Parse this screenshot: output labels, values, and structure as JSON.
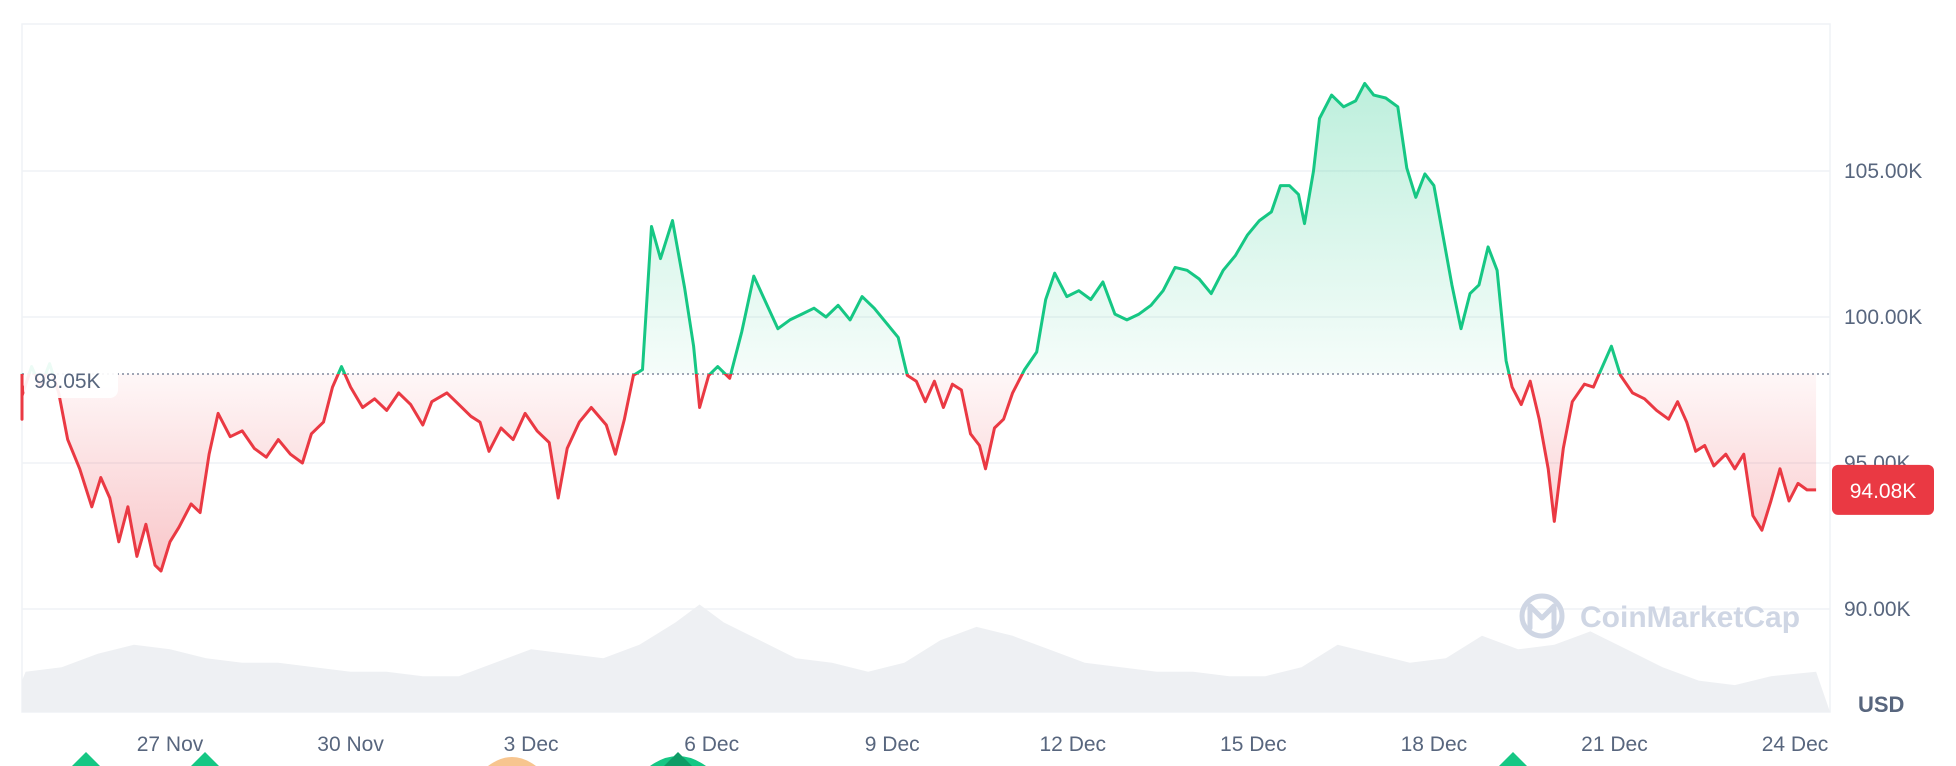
{
  "chart_data": {
    "type": "area",
    "currency_label": "USD",
    "watermark": "CoinMarketCap",
    "reference_label": "98.05K",
    "reference_value": 98050,
    "current_label": "94.08K",
    "current_value": 94080,
    "ylim": [
      86500,
      109500
    ],
    "y_ticks": [
      {
        "value": 90000,
        "label": "90.00K"
      },
      {
        "value": 95000,
        "label": "95.00K"
      },
      {
        "value": 100000,
        "label": "100.00K"
      },
      {
        "value": 105000,
        "label": "105.00K"
      }
    ],
    "x_range": [
      0,
      30
    ],
    "x_ticks": [
      {
        "x": 3,
        "label": "27 Nov"
      },
      {
        "x": 6,
        "label": "30 Nov"
      },
      {
        "x": 9,
        "label": "3 Dec"
      },
      {
        "x": 12,
        "label": "6 Dec"
      },
      {
        "x": 15,
        "label": "9 Dec"
      },
      {
        "x": 18,
        "label": "12 Dec"
      },
      {
        "x": 21,
        "label": "15 Dec"
      },
      {
        "x": 24,
        "label": "18 Dec"
      },
      {
        "x": 27,
        "label": "21 Dec"
      },
      {
        "x": 30,
        "label": "24 Dec"
      }
    ],
    "colors": {
      "up": "#16c784",
      "down": "#ea3943",
      "grid": "#eff2f5",
      "reference": "#808a9d",
      "volume": "#eef0f3"
    },
    "series": [
      {
        "values": [
          [
            0.0,
            98050
          ],
          [
            0.2,
            97200
          ],
          [
            0.35,
            96500
          ],
          [
            0.5,
            97300
          ],
          [
            0.7,
            98300
          ],
          [
            0.85,
            97600
          ],
          [
            1.0,
            98400
          ],
          [
            1.15,
            97400
          ],
          [
            1.3,
            95800
          ],
          [
            1.5,
            94800
          ],
          [
            1.7,
            93500
          ],
          [
            1.85,
            94500
          ],
          [
            2.0,
            93800
          ],
          [
            2.15,
            92300
          ],
          [
            2.3,
            93500
          ],
          [
            2.45,
            91800
          ],
          [
            2.6,
            92900
          ],
          [
            2.75,
            91500
          ],
          [
            2.85,
            91300
          ],
          [
            3.0,
            92300
          ],
          [
            3.15,
            92800
          ],
          [
            3.35,
            93600
          ],
          [
            3.5,
            93300
          ],
          [
            3.65,
            95300
          ],
          [
            3.8,
            96700
          ],
          [
            4.0,
            95900
          ],
          [
            4.2,
            96100
          ],
          [
            4.4,
            95500
          ],
          [
            4.6,
            95200
          ],
          [
            4.8,
            95800
          ],
          [
            5.0,
            95300
          ],
          [
            5.2,
            95000
          ],
          [
            5.35,
            96000
          ],
          [
            5.55,
            96400
          ],
          [
            5.7,
            97600
          ],
          [
            5.85,
            98300
          ],
          [
            6.0,
            97600
          ],
          [
            6.2,
            96900
          ],
          [
            6.4,
            97200
          ],
          [
            6.6,
            96800
          ],
          [
            6.8,
            97400
          ],
          [
            7.0,
            97000
          ],
          [
            7.2,
            96300
          ],
          [
            7.35,
            97100
          ],
          [
            7.6,
            97400
          ],
          [
            7.8,
            97000
          ],
          [
            8.0,
            96600
          ],
          [
            8.15,
            96400
          ],
          [
            8.3,
            95400
          ],
          [
            8.5,
            96200
          ],
          [
            8.7,
            95800
          ],
          [
            8.9,
            96700
          ],
          [
            9.1,
            96100
          ],
          [
            9.3,
            95700
          ],
          [
            9.45,
            93800
          ],
          [
            9.6,
            95500
          ],
          [
            9.8,
            96400
          ],
          [
            10.0,
            96900
          ],
          [
            10.25,
            96300
          ],
          [
            10.4,
            95300
          ],
          [
            10.55,
            96500
          ],
          [
            10.7,
            98000
          ],
          [
            10.85,
            98200
          ],
          [
            11.0,
            103100
          ],
          [
            11.15,
            102000
          ],
          [
            11.35,
            103300
          ],
          [
            11.55,
            101000
          ],
          [
            11.7,
            99000
          ],
          [
            11.8,
            96900
          ],
          [
            11.95,
            98000
          ],
          [
            12.1,
            98300
          ],
          [
            12.3,
            97900
          ],
          [
            12.5,
            99500
          ],
          [
            12.7,
            101400
          ],
          [
            12.9,
            100500
          ],
          [
            13.1,
            99600
          ],
          [
            13.3,
            99900
          ],
          [
            13.5,
            100100
          ],
          [
            13.7,
            100300
          ],
          [
            13.9,
            100000
          ],
          [
            14.1,
            100400
          ],
          [
            14.3,
            99900
          ],
          [
            14.5,
            100700
          ],
          [
            14.7,
            100300
          ],
          [
            14.9,
            99800
          ],
          [
            15.1,
            99300
          ],
          [
            15.25,
            98000
          ],
          [
            15.4,
            97800
          ],
          [
            15.55,
            97100
          ],
          [
            15.7,
            97800
          ],
          [
            15.85,
            96900
          ],
          [
            16.0,
            97700
          ],
          [
            16.15,
            97500
          ],
          [
            16.3,
            96000
          ],
          [
            16.45,
            95600
          ],
          [
            16.55,
            94800
          ],
          [
            16.7,
            96200
          ],
          [
            16.85,
            96500
          ],
          [
            17.0,
            97400
          ],
          [
            17.2,
            98200
          ],
          [
            17.4,
            98800
          ],
          [
            17.55,
            100600
          ],
          [
            17.7,
            101500
          ],
          [
            17.9,
            100700
          ],
          [
            18.1,
            100900
          ],
          [
            18.3,
            100600
          ],
          [
            18.5,
            101200
          ],
          [
            18.7,
            100100
          ],
          [
            18.9,
            99900
          ],
          [
            19.1,
            100100
          ],
          [
            19.3,
            100400
          ],
          [
            19.5,
            100900
          ],
          [
            19.7,
            101700
          ],
          [
            19.9,
            101600
          ],
          [
            20.1,
            101300
          ],
          [
            20.3,
            100800
          ],
          [
            20.5,
            101600
          ],
          [
            20.7,
            102100
          ],
          [
            20.9,
            102800
          ],
          [
            21.1,
            103300
          ],
          [
            21.3,
            103600
          ],
          [
            21.45,
            104500
          ],
          [
            21.6,
            104500
          ],
          [
            21.75,
            104200
          ],
          [
            21.85,
            103200
          ],
          [
            22.0,
            105000
          ],
          [
            22.1,
            106800
          ],
          [
            22.3,
            107600
          ],
          [
            22.5,
            107200
          ],
          [
            22.7,
            107400
          ],
          [
            22.85,
            108000
          ],
          [
            23.0,
            107600
          ],
          [
            23.2,
            107500
          ],
          [
            23.4,
            107200
          ],
          [
            23.55,
            105100
          ],
          [
            23.7,
            104100
          ],
          [
            23.85,
            104900
          ],
          [
            24.0,
            104500
          ],
          [
            24.15,
            102800
          ],
          [
            24.3,
            101100
          ],
          [
            24.45,
            99600
          ],
          [
            24.6,
            100800
          ],
          [
            24.75,
            101100
          ],
          [
            24.9,
            102400
          ],
          [
            25.05,
            101600
          ],
          [
            25.2,
            98500
          ],
          [
            25.3,
            97600
          ],
          [
            25.45,
            97000
          ],
          [
            25.6,
            97800
          ],
          [
            25.75,
            96500
          ],
          [
            25.9,
            94800
          ],
          [
            26.0,
            93000
          ],
          [
            26.15,
            95500
          ],
          [
            26.3,
            97100
          ],
          [
            26.5,
            97700
          ],
          [
            26.65,
            97600
          ],
          [
            26.8,
            98300
          ],
          [
            26.95,
            99000
          ],
          [
            27.1,
            98000
          ],
          [
            27.3,
            97400
          ],
          [
            27.5,
            97200
          ],
          [
            27.7,
            96800
          ],
          [
            27.9,
            96500
          ],
          [
            28.05,
            97100
          ],
          [
            28.2,
            96400
          ],
          [
            28.35,
            95400
          ],
          [
            28.5,
            95600
          ],
          [
            28.65,
            94900
          ],
          [
            28.85,
            95300
          ],
          [
            29.0,
            94800
          ],
          [
            29.15,
            95300
          ],
          [
            29.3,
            93200
          ],
          [
            29.45,
            92700
          ],
          [
            29.6,
            93700
          ],
          [
            29.75,
            94800
          ],
          [
            29.9,
            93700
          ],
          [
            30.05,
            94300
          ],
          [
            30.2,
            94080
          ],
          [
            30.35,
            94080
          ]
        ]
      }
    ],
    "volume": [
      [
        0.0,
        0.35
      ],
      [
        0.6,
        0.45
      ],
      [
        1.2,
        0.5
      ],
      [
        1.8,
        0.65
      ],
      [
        2.4,
        0.75
      ],
      [
        3.0,
        0.7
      ],
      [
        3.6,
        0.6
      ],
      [
        4.2,
        0.55
      ],
      [
        4.8,
        0.55
      ],
      [
        5.4,
        0.5
      ],
      [
        6.0,
        0.45
      ],
      [
        6.6,
        0.45
      ],
      [
        7.2,
        0.4
      ],
      [
        7.8,
        0.4
      ],
      [
        8.4,
        0.55
      ],
      [
        9.0,
        0.7
      ],
      [
        9.6,
        0.65
      ],
      [
        10.2,
        0.6
      ],
      [
        10.8,
        0.75
      ],
      [
        11.4,
        1.0
      ],
      [
        11.8,
        1.2
      ],
      [
        12.2,
        1.0
      ],
      [
        12.8,
        0.8
      ],
      [
        13.4,
        0.6
      ],
      [
        14.0,
        0.55
      ],
      [
        14.6,
        0.45
      ],
      [
        15.2,
        0.55
      ],
      [
        15.8,
        0.8
      ],
      [
        16.4,
        0.95
      ],
      [
        17.0,
        0.85
      ],
      [
        17.6,
        0.7
      ],
      [
        18.2,
        0.55
      ],
      [
        18.8,
        0.5
      ],
      [
        19.4,
        0.45
      ],
      [
        20.0,
        0.45
      ],
      [
        20.6,
        0.4
      ],
      [
        21.2,
        0.4
      ],
      [
        21.8,
        0.5
      ],
      [
        22.4,
        0.75
      ],
      [
        23.0,
        0.65
      ],
      [
        23.6,
        0.55
      ],
      [
        24.2,
        0.6
      ],
      [
        24.8,
        0.85
      ],
      [
        25.4,
        0.7
      ],
      [
        26.0,
        0.75
      ],
      [
        26.6,
        0.9
      ],
      [
        27.2,
        0.7
      ],
      [
        27.8,
        0.5
      ],
      [
        28.4,
        0.35
      ],
      [
        29.0,
        0.3
      ],
      [
        29.6,
        0.4
      ],
      [
        30.35,
        0.45
      ]
    ]
  }
}
